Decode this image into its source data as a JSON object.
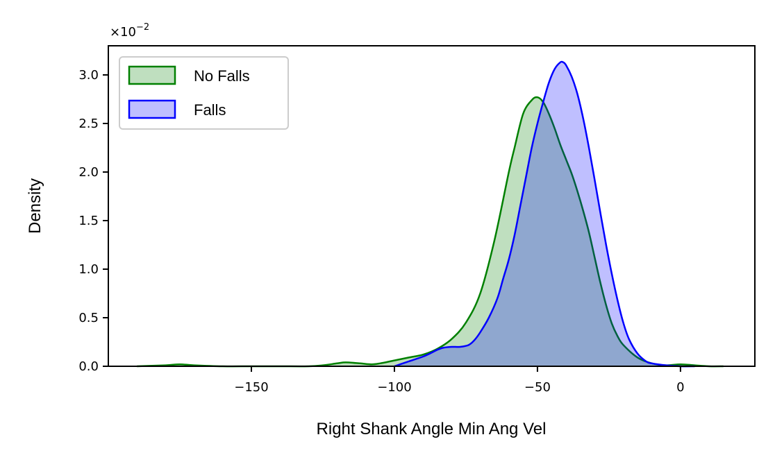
{
  "chart_data": {
    "type": "area",
    "xlabel": "Right Shank Angle Min Ang Vel",
    "ylabel": "Density",
    "y_offset_text": "×10",
    "y_offset_exponent": "−2",
    "xlim": [
      -200,
      26
    ],
    "ylim": [
      0,
      3.3
    ],
    "xticks": [
      -150,
      -100,
      -50,
      0
    ],
    "xtick_labels": [
      "−150",
      "−100",
      "−50",
      "0"
    ],
    "yticks": [
      0,
      0.5,
      1.0,
      1.5,
      2.0,
      2.5,
      3.0
    ],
    "ytick_labels": [
      "0.0",
      "0.5",
      "1.0",
      "1.5",
      "2.0",
      "2.5",
      "3.0"
    ],
    "grid": false,
    "legend_position": "upper-left",
    "series": [
      {
        "name": "No Falls",
        "color": "#008000",
        "fill": "#008000",
        "fill_opacity": 0.25,
        "x": [
          -190,
          -180,
          -175,
          -170,
          -160,
          -150,
          -140,
          -130,
          -125,
          -120,
          -117,
          -112,
          -108,
          -105,
          -100,
          -95,
          -90,
          -85,
          -80,
          -75,
          -70,
          -65,
          -60,
          -58,
          -55,
          -52,
          -50,
          -48,
          -46,
          -44,
          -42,
          -40,
          -38,
          -36,
          -34,
          -32,
          -30,
          -28,
          -26,
          -24,
          -22,
          -20,
          -15,
          -10,
          -5,
          0,
          5,
          10,
          15
        ],
        "y": [
          0.0,
          0.01,
          0.02,
          0.01,
          0.0,
          0.0,
          0.0,
          0.0,
          0.01,
          0.03,
          0.04,
          0.03,
          0.02,
          0.03,
          0.06,
          0.09,
          0.12,
          0.18,
          0.28,
          0.45,
          0.75,
          1.3,
          2.0,
          2.25,
          2.6,
          2.74,
          2.77,
          2.72,
          2.6,
          2.45,
          2.28,
          2.13,
          1.98,
          1.8,
          1.6,
          1.38,
          1.12,
          0.86,
          0.63,
          0.44,
          0.31,
          0.22,
          0.09,
          0.03,
          0.01,
          0.02,
          0.01,
          0.0,
          0.0
        ]
      },
      {
        "name": "Falls",
        "color": "#0000ff",
        "fill": "#0000ff",
        "fill_opacity": 0.25,
        "x": [
          -100,
          -95,
          -90,
          -87,
          -85,
          -83,
          -80,
          -77,
          -74,
          -72,
          -70,
          -67,
          -64,
          -62,
          -60,
          -58,
          -56,
          -54,
          -52,
          -50,
          -48,
          -46,
          -44,
          -42,
          -41,
          -40,
          -38,
          -36,
          -34,
          -32,
          -30,
          -28,
          -26,
          -24,
          -22,
          -20,
          -18,
          -15,
          -12,
          -10,
          -5,
          0,
          5
        ],
        "y": [
          0.0,
          0.05,
          0.1,
          0.14,
          0.17,
          0.19,
          0.2,
          0.2,
          0.22,
          0.27,
          0.35,
          0.5,
          0.7,
          0.9,
          1.1,
          1.35,
          1.65,
          1.95,
          2.25,
          2.5,
          2.72,
          2.92,
          3.06,
          3.13,
          3.13,
          3.1,
          2.98,
          2.8,
          2.55,
          2.25,
          1.92,
          1.58,
          1.25,
          0.95,
          0.68,
          0.45,
          0.28,
          0.13,
          0.05,
          0.03,
          0.01,
          0.0,
          0.0
        ]
      }
    ]
  }
}
